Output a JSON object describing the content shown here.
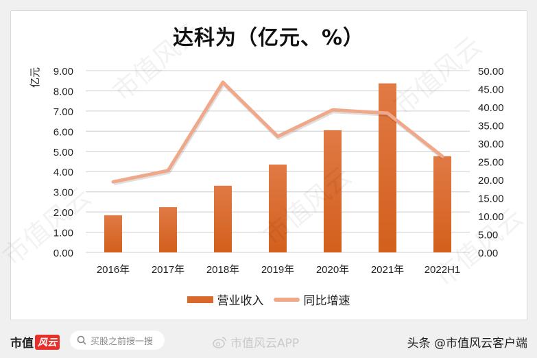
{
  "title": "达科为（亿元、%）",
  "y_axis_label": "亿元",
  "legend": {
    "bar_label": "营业收入",
    "line_label": "同比增速"
  },
  "footer": {
    "logo_text": "市值",
    "logo_badge": "风云",
    "search_placeholder": "买股之前搜一搜",
    "weibo_text": "市值风云APP",
    "toutiao_text": "头条 @市值风云客户端"
  },
  "watermark": "市值风云",
  "colors": {
    "bar": "#d8692a",
    "line": "#f0a88a",
    "grid": "#d9d9d9"
  },
  "chart_data": {
    "type": "bar",
    "title": "达科为（亿元、%）",
    "categories": [
      "2016年",
      "2017年",
      "2018年",
      "2019年",
      "2020年",
      "2021年",
      "2022H1"
    ],
    "series": [
      {
        "name": "营业收入",
        "type": "bar",
        "axis": "left",
        "values": [
          1.84,
          2.24,
          3.3,
          4.35,
          6.05,
          8.37,
          4.76
        ]
      },
      {
        "name": "同比增速",
        "type": "line",
        "axis": "right",
        "values": [
          19.4,
          22.5,
          46.8,
          31.9,
          39.2,
          38.3,
          26.4
        ]
      }
    ],
    "ylabel": "亿元",
    "ylim": [
      0,
      9
    ],
    "y_ticks": [
      "0.00",
      "1.00",
      "2.00",
      "3.00",
      "4.00",
      "5.00",
      "6.00",
      "7.00",
      "8.00",
      "9.00"
    ],
    "y2lim": [
      0,
      50
    ],
    "y2_ticks": [
      "0.00",
      "5.00",
      "10.00",
      "15.00",
      "20.00",
      "25.00",
      "30.00",
      "35.00",
      "40.00",
      "45.00",
      "50.00"
    ],
    "grid": true,
    "legend_position": "bottom"
  }
}
